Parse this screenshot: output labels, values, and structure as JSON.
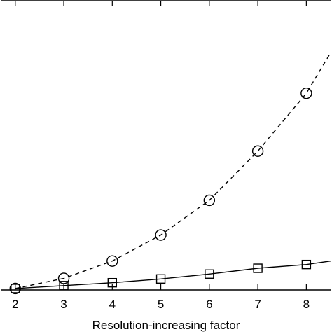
{
  "chart_data": {
    "type": "line",
    "xlabel": "Resolution-increasing factor",
    "ylabel": "",
    "title": "",
    "x_ticks": [
      2,
      3,
      4,
      5,
      6,
      7,
      8
    ],
    "xlim": [
      1.7,
      8.5
    ],
    "ylim": [
      0,
      100
    ],
    "grid": false,
    "series": [
      {
        "marker": "circle",
        "line_style": "dashed",
        "x": [
          2,
          3,
          4,
          5,
          6,
          7,
          8,
          8.5
        ],
        "y": [
          0.5,
          4,
          10,
          19,
          31,
          48,
          68,
          82
        ]
      },
      {
        "marker": "square",
        "line_style": "solid",
        "x": [
          2,
          3,
          4,
          5,
          6,
          7,
          8,
          8.5
        ],
        "y": [
          0.5,
          1.5,
          2.5,
          3.8,
          5.5,
          7.5,
          8.8,
          10
        ]
      }
    ]
  }
}
